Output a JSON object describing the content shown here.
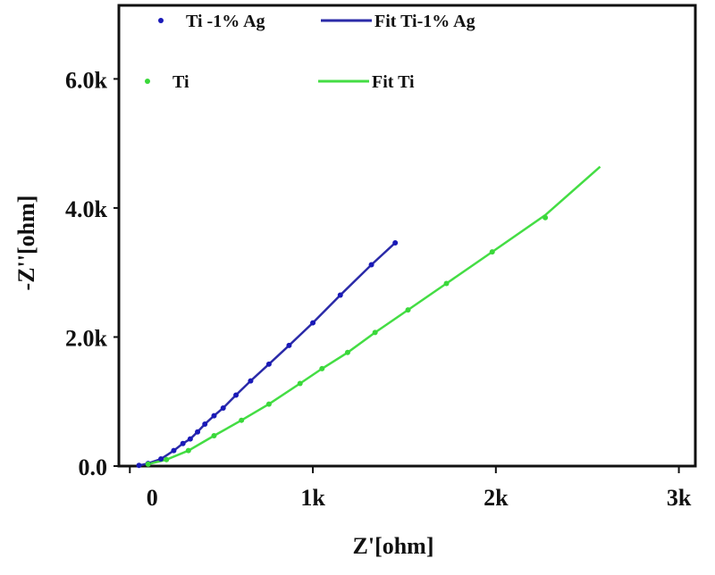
{
  "chart_data": {
    "type": "scatter",
    "title": "",
    "xlabel": "Z'[ohm]",
    "ylabel": "-Z''[ohm]",
    "xlim": [
      -0.06,
      3.09
    ],
    "ylim": [
      0,
      7.14
    ],
    "xticks": [
      0,
      1,
      2,
      3
    ],
    "xtick_labels": [
      "0",
      "1k",
      "2k",
      "3k"
    ],
    "yticks": [
      0,
      2,
      4,
      6
    ],
    "ytick_labels": [
      "0.0",
      "2.0k",
      "4.0k",
      "6.0k"
    ],
    "grid": false,
    "legend_position": "top",
    "series": [
      {
        "name": "Ti -1% Ag",
        "kind": "points",
        "color": "#1a1ab8",
        "x": [
          0.05,
          0.1,
          0.17,
          0.24,
          0.29,
          0.33,
          0.37,
          0.41,
          0.46,
          0.51,
          0.58,
          0.66,
          0.76,
          0.87,
          1.0,
          1.15,
          1.32,
          1.45
        ],
        "y": [
          0.01,
          0.04,
          0.11,
          0.24,
          0.35,
          0.42,
          0.53,
          0.65,
          0.78,
          0.9,
          1.1,
          1.32,
          1.58,
          1.87,
          2.22,
          2.65,
          3.12,
          3.46
        ]
      },
      {
        "name": "Fit  Ti-1% Ag",
        "kind": "line",
        "color": "#2a2aa8",
        "x": [
          0.05,
          0.1,
          0.17,
          0.24,
          0.29,
          0.33,
          0.37,
          0.41,
          0.46,
          0.51,
          0.58,
          0.66,
          0.76,
          0.87,
          1.0,
          1.15,
          1.32,
          1.45
        ],
        "y": [
          0.01,
          0.04,
          0.11,
          0.24,
          0.35,
          0.42,
          0.53,
          0.65,
          0.78,
          0.9,
          1.1,
          1.32,
          1.58,
          1.87,
          2.22,
          2.65,
          3.12,
          3.46
        ]
      },
      {
        "name": "Ti",
        "kind": "points",
        "color": "#3ad83a",
        "x": [
          0.1,
          0.2,
          0.32,
          0.46,
          0.61,
          0.76,
          0.93,
          1.05,
          1.19,
          1.34,
          1.52,
          1.73,
          1.98,
          2.27
        ],
        "y": [
          0.03,
          0.1,
          0.24,
          0.47,
          0.71,
          0.96,
          1.28,
          1.51,
          1.76,
          2.07,
          2.42,
          2.83,
          3.32,
          3.85
        ]
      },
      {
        "name": "Fit  Ti",
        "kind": "line",
        "color": "#44dd44",
        "x": [
          0.1,
          0.2,
          0.32,
          0.46,
          0.61,
          0.76,
          0.93,
          1.05,
          1.19,
          1.34,
          1.52,
          1.73,
          1.98,
          2.27,
          2.57
        ],
        "y": [
          0.03,
          0.1,
          0.24,
          0.47,
          0.71,
          0.96,
          1.28,
          1.51,
          1.76,
          2.07,
          2.42,
          2.83,
          3.32,
          3.89,
          4.64
        ]
      }
    ]
  }
}
